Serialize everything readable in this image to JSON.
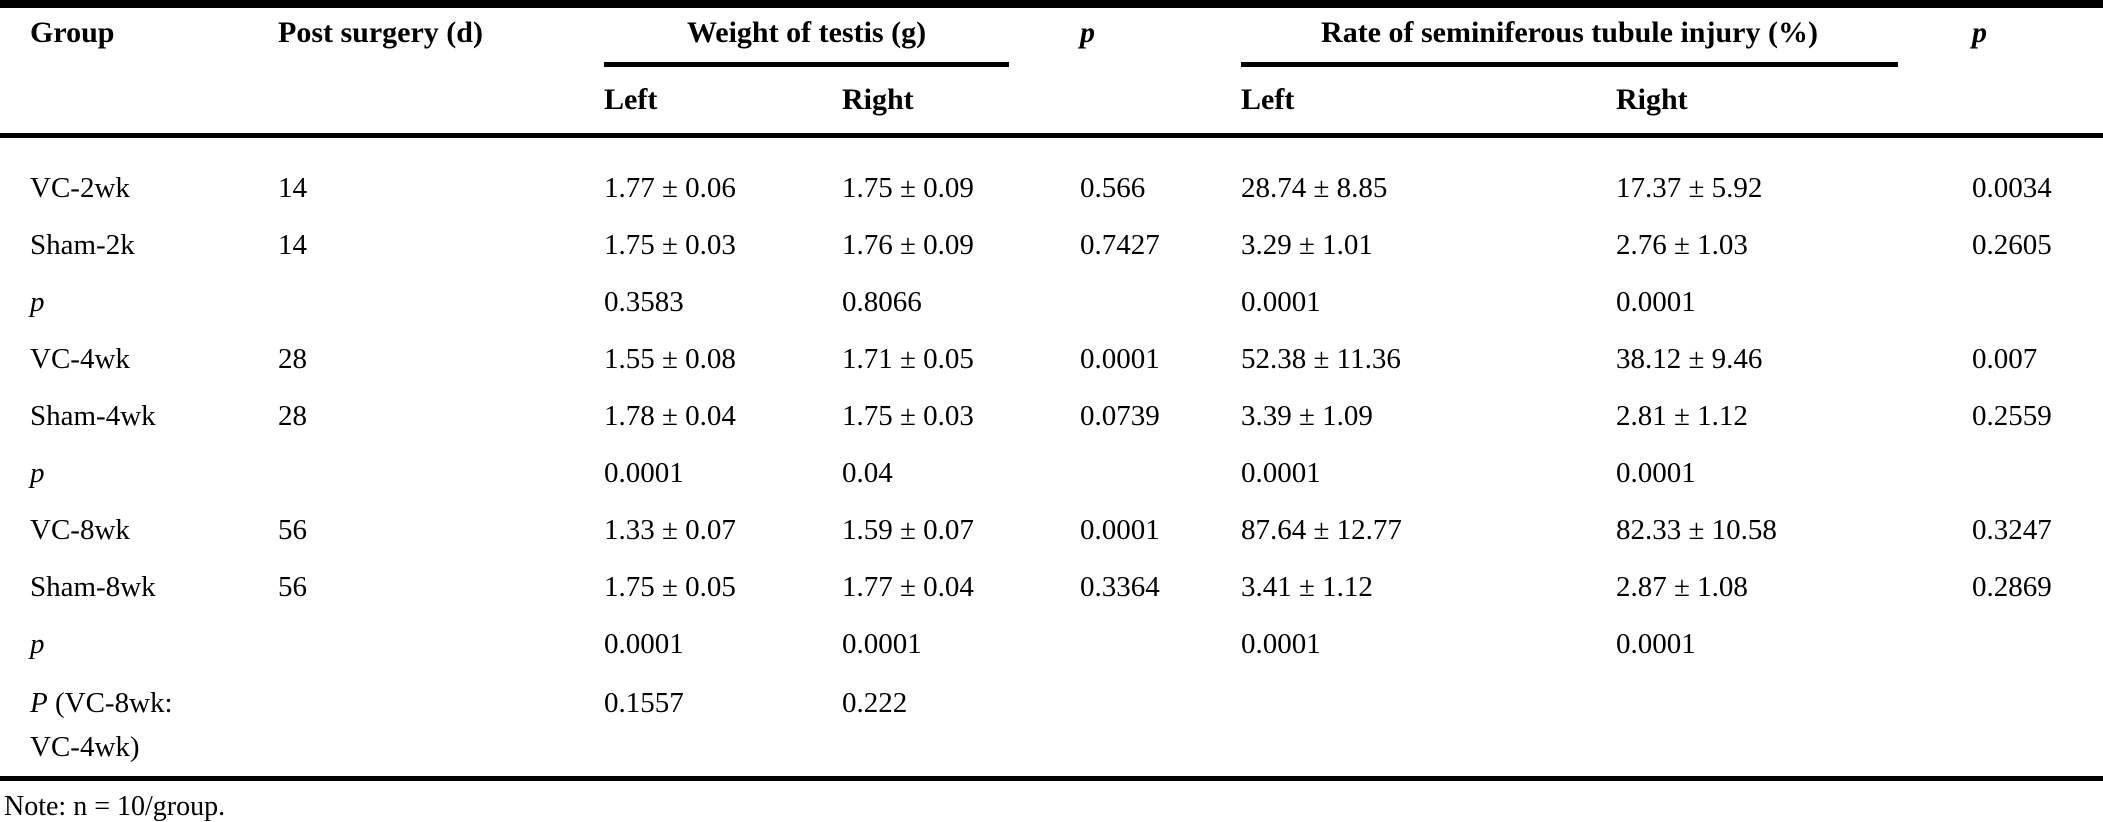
{
  "table": {
    "header": {
      "group": "Group",
      "post_surgery": "Post surgery (d)",
      "weight_spanner": "Weight of testis (g)",
      "p_weight": "p",
      "rate_spanner": "Rate of seminiferous tubule injury (%)",
      "p_rate": "p",
      "sub_weight_left": "Left",
      "sub_weight_right": "Right",
      "sub_rate_left": "Left",
      "sub_rate_right": "Right"
    },
    "rows": [
      {
        "label_italic_part": "",
        "label": "VC-2wk",
        "label2": "",
        "cells": [
          "14",
          "1.77 ± 0.06",
          "1.75 ± 0.09",
          "0.566",
          "28.74 ± 8.85",
          "17.37 ± 5.92",
          "0.0034"
        ]
      },
      {
        "label_italic_part": "",
        "label": "Sham-2k",
        "label2": "",
        "cells": [
          "14",
          "1.75 ± 0.03",
          "1.76 ± 0.09",
          "0.7427",
          "3.29 ± 1.01",
          "2.76 ± 1.03",
          "0.2605"
        ]
      },
      {
        "label_italic_part": "p",
        "label": "",
        "label2": "",
        "cells": [
          "",
          "0.3583",
          "0.8066",
          "",
          "0.0001",
          "0.0001",
          ""
        ]
      },
      {
        "label_italic_part": "",
        "label": "VC-4wk",
        "label2": "",
        "cells": [
          "28",
          "1.55 ± 0.08",
          "1.71 ± 0.05",
          "0.0001",
          "52.38 ± 11.36",
          "38.12 ± 9.46",
          "0.007"
        ]
      },
      {
        "label_italic_part": "",
        "label": "Sham-4wk",
        "label2": "",
        "cells": [
          "28",
          "1.78 ± 0.04",
          "1.75 ± 0.03",
          "0.0739",
          "3.39 ± 1.09",
          "2.81 ± 1.12",
          "0.2559"
        ]
      },
      {
        "label_italic_part": "p",
        "label": "",
        "label2": "",
        "cells": [
          "",
          "0.0001",
          "0.04",
          "",
          "0.0001",
          "0.0001",
          ""
        ]
      },
      {
        "label_italic_part": "",
        "label": "VC-8wk",
        "label2": "",
        "cells": [
          "56",
          "1.33 ± 0.07",
          "1.59 ± 0.07",
          "0.0001",
          "87.64 ± 12.77",
          "82.33 ± 10.58",
          "0.3247"
        ]
      },
      {
        "label_italic_part": "",
        "label": "Sham-8wk",
        "label2": "",
        "cells": [
          "56",
          "1.75 ± 0.05",
          "1.77 ± 0.04",
          "0.3364",
          "3.41 ± 1.12",
          "2.87 ± 1.08",
          "0.2869"
        ]
      },
      {
        "label_italic_part": "p",
        "label": "",
        "label2": "",
        "cells": [
          "",
          "0.0001",
          "0.0001",
          "",
          "0.0001",
          "0.0001",
          ""
        ]
      },
      {
        "label_italic_part": "P",
        "label": " (VC-8wk:",
        "label2": "VC-4wk)",
        "cells": [
          "",
          "0.1557",
          "0.222",
          "",
          "",
          "",
          ""
        ]
      }
    ],
    "note": "Note: n = 10/group."
  }
}
